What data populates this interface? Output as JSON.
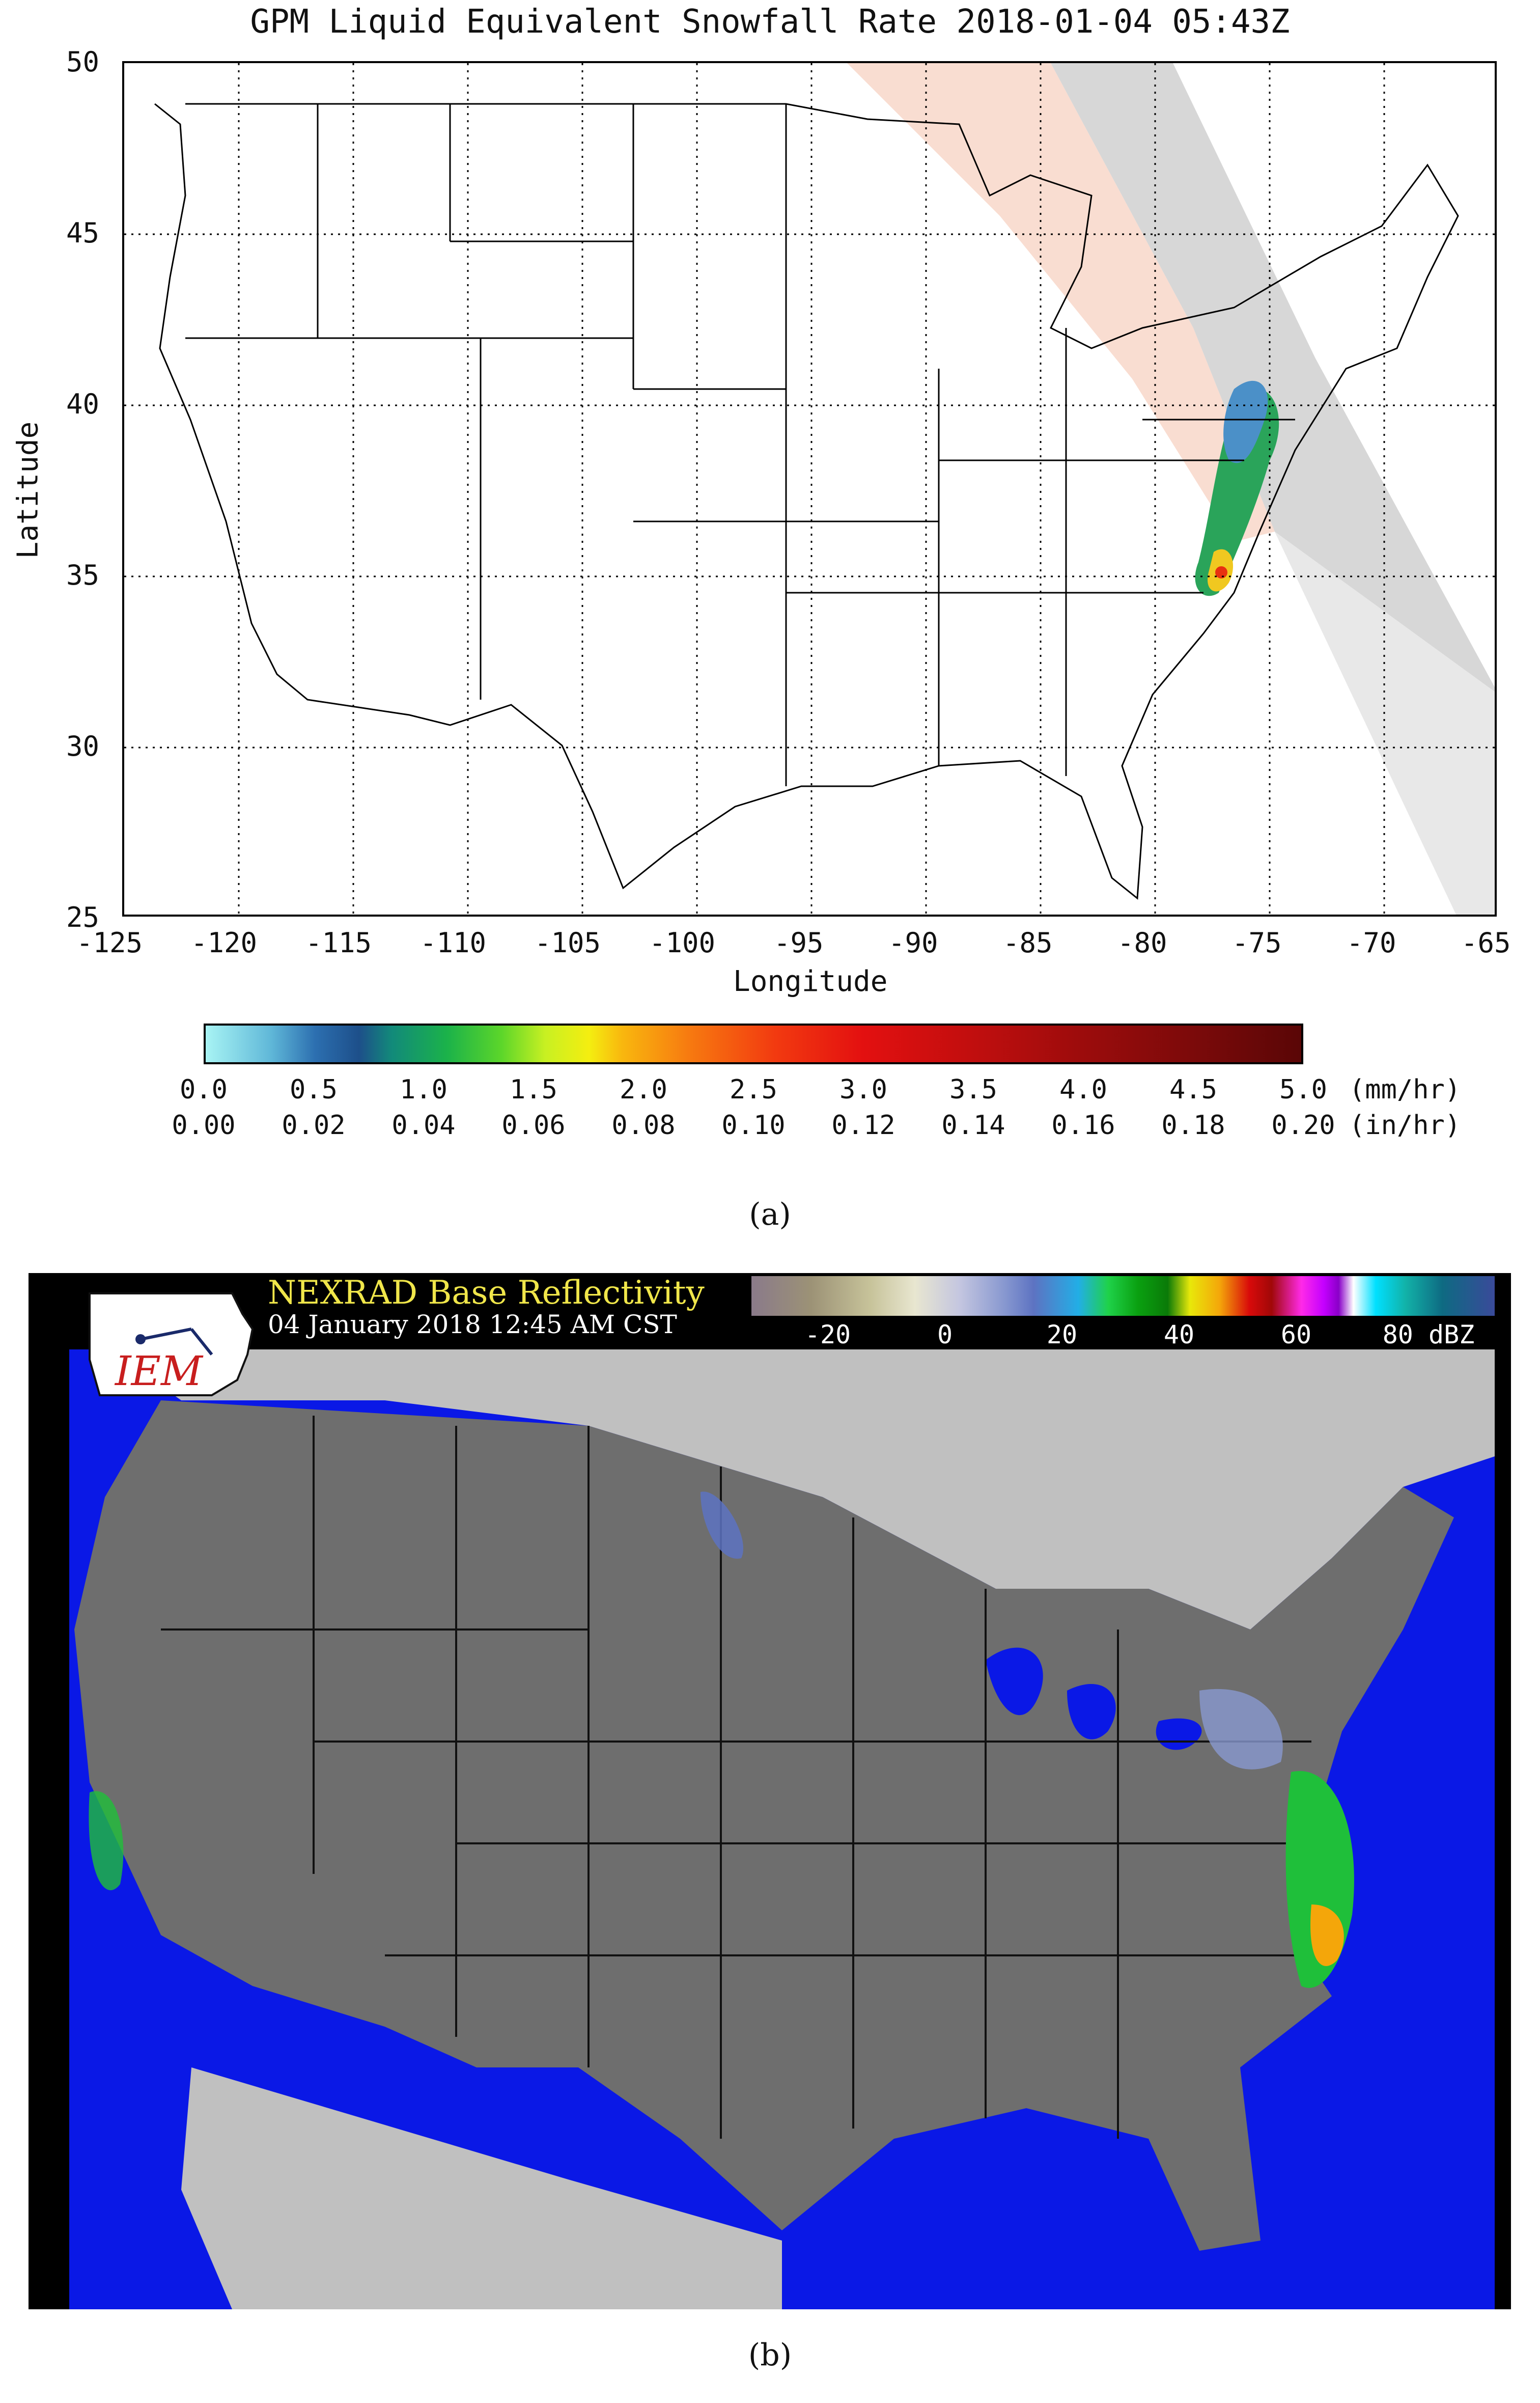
{
  "panel_a": {
    "title": "GPM Liquid Equivalent Snowfall Rate 2018-01-04 05:43Z",
    "xlabel": "Longitude",
    "ylabel": "Latitude",
    "x_ticks": [
      "-125",
      "-120",
      "-115",
      "-110",
      "-105",
      "-100",
      "-95",
      "-90",
      "-85",
      "-80",
      "-75",
      "-70",
      "-65"
    ],
    "y_ticks": [
      "50",
      "45",
      "40",
      "35",
      "30",
      "25"
    ],
    "colorbar": {
      "mm_labels": [
        "0.0",
        "0.5",
        "1.0",
        "1.5",
        "2.0",
        "2.5",
        "3.0",
        "3.5",
        "4.0",
        "4.5",
        "5.0"
      ],
      "in_labels": [
        "0.00",
        "0.02",
        "0.04",
        "0.06",
        "0.08",
        "0.10",
        "0.12",
        "0.14",
        "0.16",
        "0.18",
        "0.20"
      ],
      "mm_unit": "(mm/hr)",
      "in_unit": "(in/hr)"
    },
    "caption": "(a)"
  },
  "panel_b": {
    "title": "NEXRAD Base Reflectivity",
    "date": "04 January 2018 12:45 AM CST",
    "logo_text": "IEM",
    "scale_labels": [
      "-20",
      "0",
      "20",
      "40",
      "60",
      "80 dBZ"
    ],
    "caption": "(b)"
  },
  "chart_data": {
    "type": "heatmap",
    "title": "GPM Liquid Equivalent Snowfall Rate 2018-01-04 05:43Z",
    "xlabel": "Longitude",
    "ylabel": "Latitude",
    "xlim": [
      -125,
      -65
    ],
    "ylim": [
      25,
      50
    ],
    "x_ticks": [
      -125,
      -120,
      -115,
      -110,
      -105,
      -100,
      -95,
      -90,
      -85,
      -80,
      -75,
      -70,
      -65
    ],
    "y_ticks": [
      25,
      30,
      35,
      40,
      45,
      50
    ],
    "grid": true,
    "colorbar_range_mm_hr": [
      0.0,
      5.0
    ],
    "colorbar_range_in_hr": [
      0.0,
      0.2
    ]
  }
}
